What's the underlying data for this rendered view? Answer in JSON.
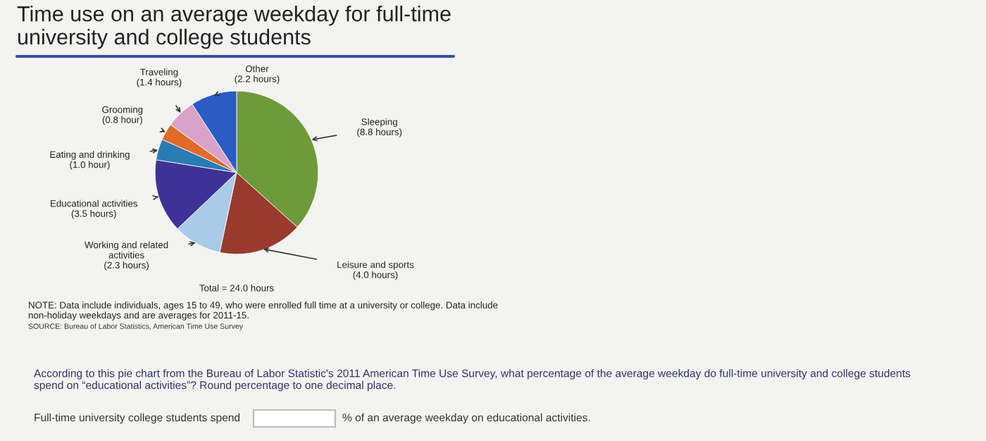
{
  "chart_data": {
    "type": "pie",
    "title": "Time use on an average weekday for full-time\nuniversity and college students",
    "categories": [
      "Sleeping",
      "Leisure and sports",
      "Working and related\nactivities",
      "Educational activities",
      "Eating and drinking",
      "Grooming",
      "Traveling",
      "Other"
    ],
    "values": [
      8.8,
      4.0,
      2.3,
      3.5,
      1.0,
      0.8,
      1.4,
      2.2
    ],
    "value_labels": [
      "(8.8 hours)",
      "(4.0 hours)",
      "(2.3 hours)",
      "(3.5 hours)",
      "(1.0 hour)",
      "(0.8 hour)",
      "(1.4 hours)",
      "(2.2 hours)"
    ],
    "colors": [
      "#6e9a3c",
      "#9a3a2e",
      "#a9cbe8",
      "#3f3296",
      "#2a7bb5",
      "#e06a2a",
      "#d9a3c8",
      "#2a5cc4"
    ],
    "legend": false,
    "annotations": [
      "Total = 24.0 hours",
      "NOTE: Data include individuals, ages 15 to 49, who were enrolled full time at a university or college. Data include\nnon-holiday weekdays and are averages for 2011-15.",
      "SOURCE: Bureau of Labor Statistics, American Time Use Survey",
      "According to this pie chart from the Bureau of Labor Statistic's 2011 American Time Use Survey, what percentage of the average weekday do full-time university and college students\nspend on “educational activities”? Round percentage to one decimal place.",
      "Full-time university college students spend",
      "% of an average weekday on educational activities."
    ]
  }
}
